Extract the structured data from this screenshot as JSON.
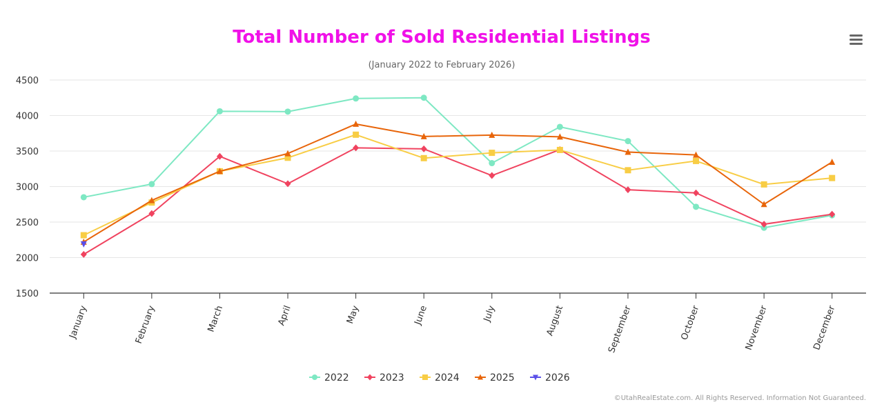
{
  "chart_data": {
    "type": "line",
    "title": "Total Number of Sold Residential Listings",
    "subtitle": "(January 2022 to February 2026)",
    "title_color": "#f011e8",
    "categories": [
      "January",
      "February",
      "March",
      "April",
      "May",
      "June",
      "July",
      "August",
      "September",
      "October",
      "November",
      "December"
    ],
    "ylim": [
      1500,
      4500
    ],
    "yticks": [
      1500,
      2000,
      2500,
      3000,
      3500,
      4000,
      4500
    ],
    "grid": true,
    "legend_position": "bottom-center",
    "series": [
      {
        "name": "2022",
        "color": "#7ee8c3",
        "marker": "circle",
        "values": [
          2850,
          3035,
          4060,
          4055,
          4240,
          4250,
          3330,
          3840,
          3640,
          2715,
          2420,
          2595
        ]
      },
      {
        "name": "2023",
        "color": "#f0435f",
        "marker": "diamond",
        "values": [
          2045,
          2620,
          3425,
          3040,
          3545,
          3530,
          3155,
          3520,
          2955,
          2910,
          2470,
          2610
        ]
      },
      {
        "name": "2024",
        "color": "#f8cd45",
        "marker": "square",
        "values": [
          2315,
          2775,
          3215,
          3405,
          3730,
          3400,
          3475,
          3515,
          3230,
          3360,
          3030,
          3120
        ]
      },
      {
        "name": "2025",
        "color": "#e8650a",
        "marker": "triangle",
        "values": [
          2220,
          2805,
          3215,
          3465,
          3880,
          3705,
          3725,
          3700,
          3485,
          3445,
          2750,
          3345
        ]
      },
      {
        "name": "2026",
        "color": "#5a4fe8",
        "marker": "triangle-down",
        "values": [
          2190,
          null,
          null,
          null,
          null,
          null,
          null,
          null,
          null,
          null,
          null,
          null
        ]
      }
    ]
  },
  "menu": {
    "icon": "hamburger-menu-icon"
  },
  "credits": "©UtahRealEstate.com. All Rights Reserved. Information Not Guaranteed."
}
